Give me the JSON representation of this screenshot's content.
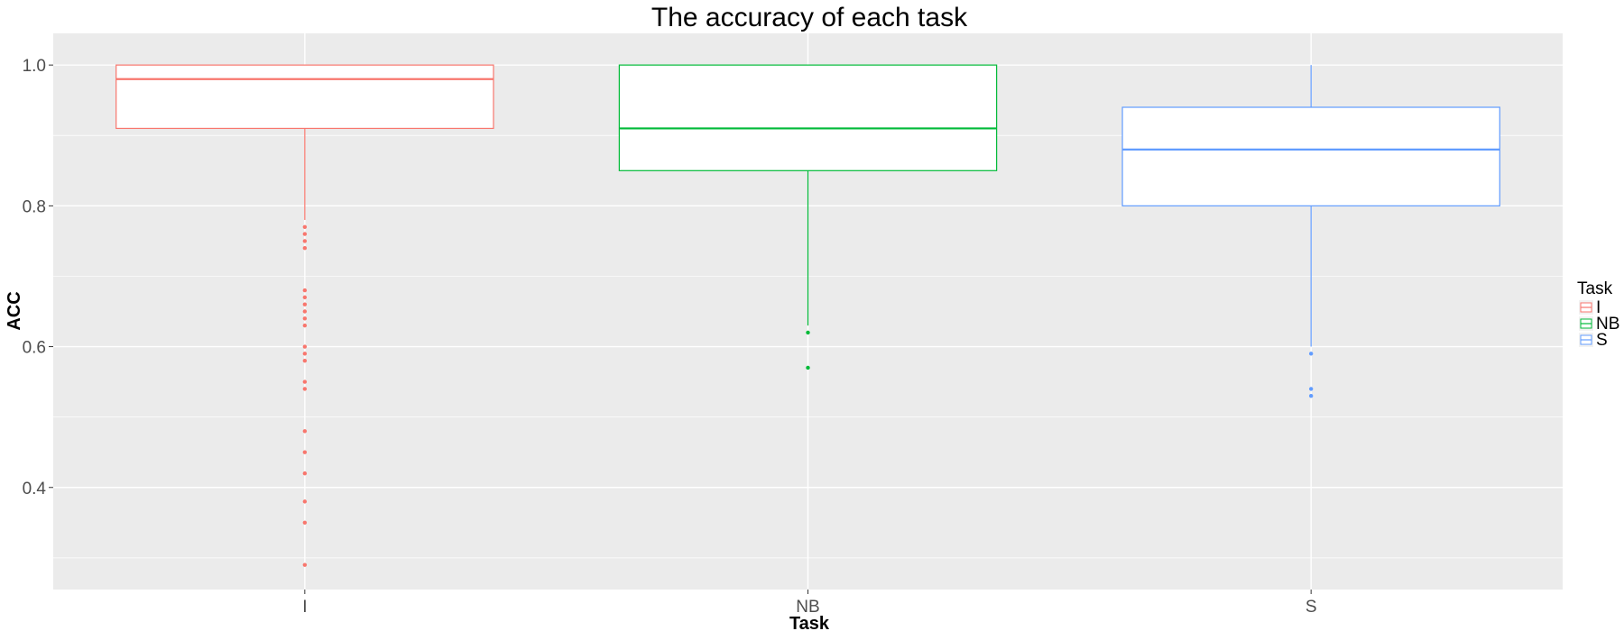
{
  "chart_data": {
    "type": "box",
    "title": "The accuracy of each task",
    "xlabel": "Task",
    "ylabel": "ACC",
    "ylim": [
      0.255,
      1.045
    ],
    "yticks": [
      0.4,
      0.6,
      0.8,
      1.0
    ],
    "ytick_labels": [
      "0.4",
      "0.6",
      "0.8",
      "1.0"
    ],
    "categories": [
      "I",
      "NB",
      "S"
    ],
    "grid": true,
    "legend": {
      "title": "Task",
      "position": "right",
      "entries": [
        "I",
        "NB",
        "S"
      ]
    },
    "series": [
      {
        "name": "I",
        "color": "#F8766D",
        "q1": 0.91,
        "median": 0.98,
        "q3": 1.0,
        "whisker_low": 0.78,
        "whisker_high": 1.0,
        "outliers": [
          0.77,
          0.76,
          0.75,
          0.74,
          0.68,
          0.67,
          0.66,
          0.65,
          0.64,
          0.63,
          0.6,
          0.59,
          0.58,
          0.55,
          0.54,
          0.48,
          0.45,
          0.42,
          0.38,
          0.35,
          0.29
        ]
      },
      {
        "name": "NB",
        "color": "#00BA38",
        "q1": 0.85,
        "median": 0.91,
        "q3": 1.0,
        "whisker_low": 0.63,
        "whisker_high": 1.0,
        "outliers": [
          0.62,
          0.57
        ]
      },
      {
        "name": "S",
        "color": "#619CFF",
        "q1": 0.8,
        "median": 0.88,
        "q3": 0.94,
        "whisker_low": 0.6,
        "whisker_high": 1.0,
        "outliers": [
          0.59,
          0.54,
          0.53
        ]
      }
    ]
  }
}
